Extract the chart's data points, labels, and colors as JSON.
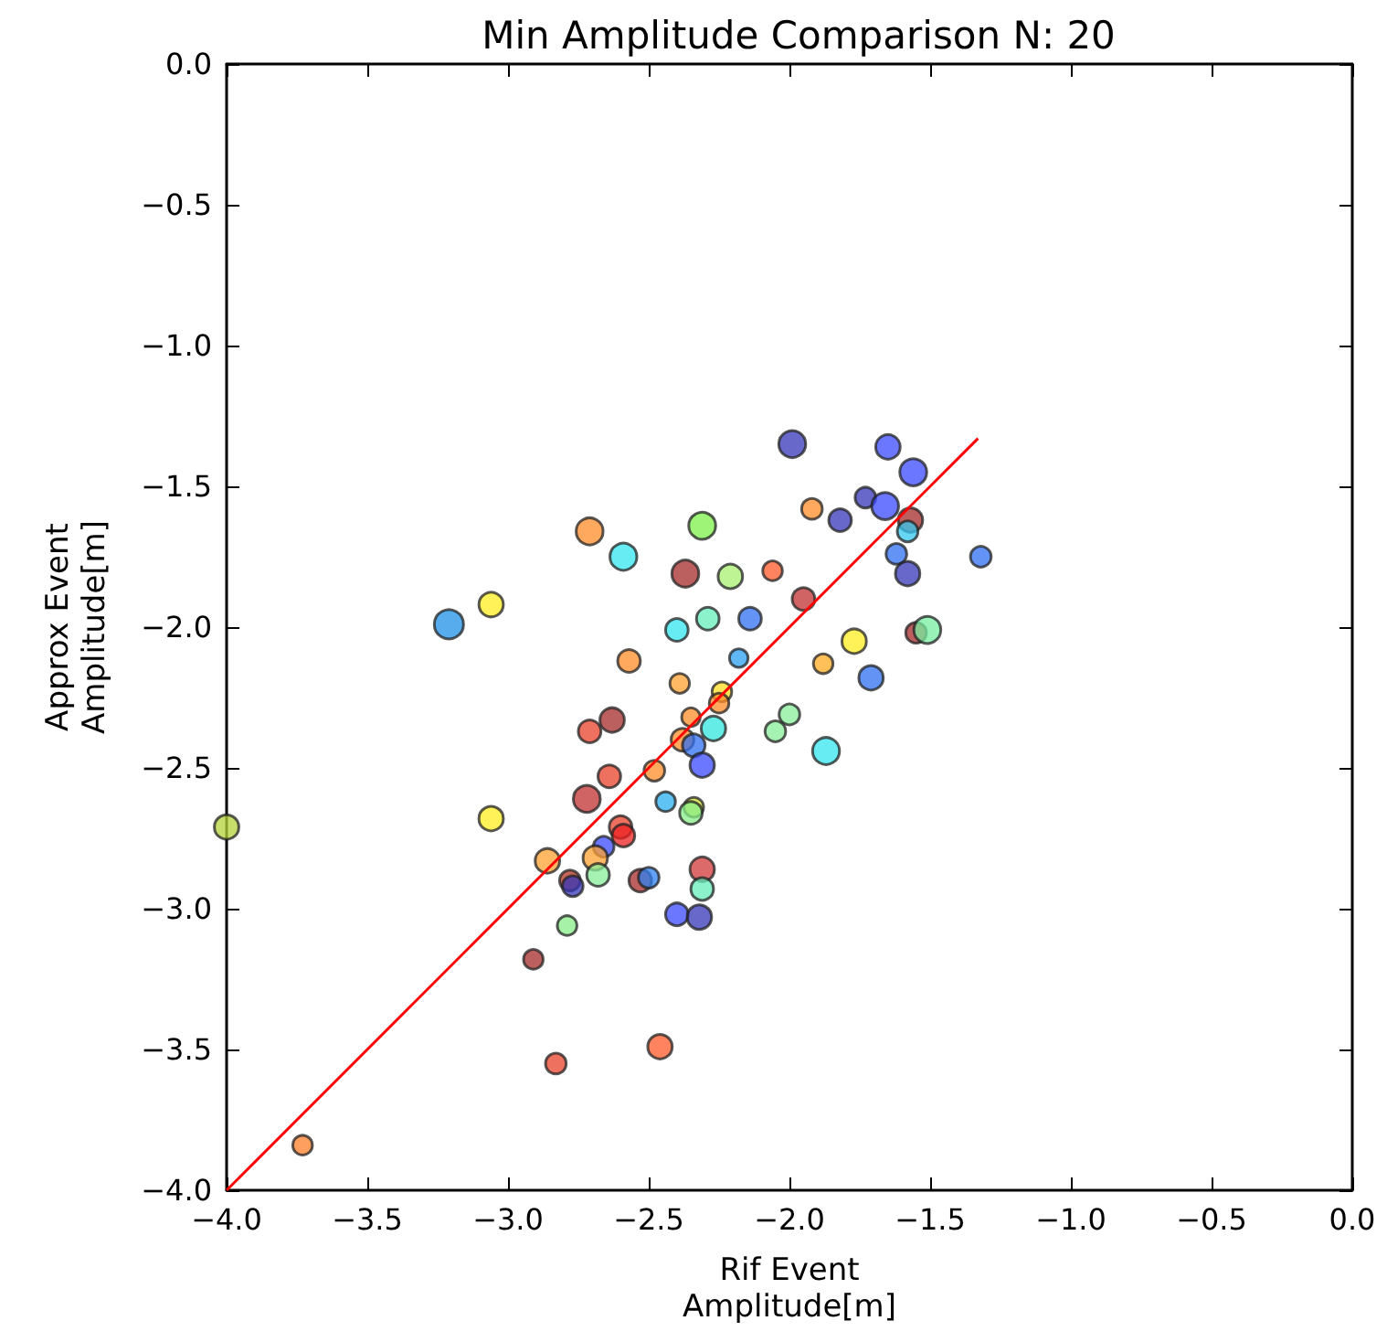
{
  "chart_data": {
    "type": "bubble",
    "title": "Min Amplitude Comparison N: 20",
    "xlabel": "Rif Event\nAmplitude[m]",
    "ylabel": "Approx Event\nAmplitude[m]",
    "xlim": [
      -4,
      0
    ],
    "ylim": [
      -4,
      0
    ],
    "xticks": [
      {
        "value": -4,
        "label": "−4.0"
      },
      {
        "value": -3.5,
        "label": "−3.5"
      },
      {
        "value": -3,
        "label": "−3.0"
      },
      {
        "value": -2.5,
        "label": "−2.5"
      },
      {
        "value": -2,
        "label": "−2.0"
      },
      {
        "value": -1.5,
        "label": "−1.5"
      },
      {
        "value": -1,
        "label": "−1.0"
      },
      {
        "value": -0.5,
        "label": "−0.5"
      },
      {
        "value": 0,
        "label": "0.0"
      }
    ],
    "yticks": [
      {
        "value": -4,
        "label": "−4.0"
      },
      {
        "value": -3.5,
        "label": "−3.5"
      },
      {
        "value": -3,
        "label": "−3.0"
      },
      {
        "value": -2.5,
        "label": "−2.5"
      },
      {
        "value": -2,
        "label": "−2.0"
      },
      {
        "value": -1.5,
        "label": "−1.5"
      },
      {
        "value": -1,
        "label": "−1.0"
      },
      {
        "value": -0.5,
        "label": "−0.5"
      },
      {
        "value": 0,
        "label": "0.0"
      }
    ],
    "series": [
      {
        "x": [
          -4.0,
          -3.73,
          -3.21,
          -3.06,
          -3.06,
          -2.71,
          -2.59,
          -2.31,
          -2.21,
          -2.37,
          -2.06,
          -1.99,
          -1.65,
          -1.56,
          -1.73,
          -1.66,
          -1.92,
          -1.82,
          -1.57,
          -1.58,
          -1.62,
          -1.32,
          -1.58,
          -1.95,
          -2.29,
          -2.14,
          -2.4,
          -1.55,
          -1.51,
          -2.57,
          -2.18,
          -1.88,
          -1.77,
          -1.71,
          -2.39,
          -2.24,
          -2.25,
          -2.63,
          -2.71,
          -2.35,
          -2.38,
          -2.34,
          -2.27,
          -2.0,
          -2.05,
          -1.87,
          -2.31,
          -2.48,
          -2.64,
          -2.72,
          -2.44,
          -2.34,
          -2.35,
          -2.6,
          -2.59,
          -2.66,
          -2.69,
          -2.68,
          -2.86,
          -2.31,
          -2.31,
          -2.78,
          -2.77,
          -2.53,
          -2.5,
          -2.4,
          -2.32,
          -2.79,
          -2.91,
          -2.83,
          -2.46
        ],
        "values": [
          -2.71,
          -3.84,
          -1.99,
          -1.92,
          -2.68,
          -1.66,
          -1.75,
          -1.64,
          -1.82,
          -1.81,
          -1.8,
          -1.35,
          -1.36,
          -1.45,
          -1.54,
          -1.57,
          -1.58,
          -1.62,
          -1.62,
          -1.66,
          -1.74,
          -1.75,
          -1.81,
          -1.9,
          -1.97,
          -1.97,
          -2.01,
          -2.02,
          -2.01,
          -2.12,
          -2.11,
          -2.13,
          -2.05,
          -2.18,
          -2.2,
          -2.23,
          -2.27,
          -2.33,
          -2.37,
          -2.32,
          -2.4,
          -2.42,
          -2.36,
          -2.31,
          -2.37,
          -2.44,
          -2.49,
          -2.51,
          -2.53,
          -2.61,
          -2.62,
          -2.64,
          -2.66,
          -2.71,
          -2.74,
          -2.78,
          -2.82,
          -2.88,
          -2.83,
          -2.86,
          -2.93,
          -2.9,
          -2.92,
          -2.9,
          -2.89,
          -3.02,
          -3.03,
          -3.06,
          -3.18,
          -3.55,
          -3.49
        ],
        "sizes": [
          0.7,
          0.45,
          1,
          0.7,
          0.7,
          0.85,
          0.85,
          0.85,
          0.7,
          0.85,
          0.45,
          0.85,
          0.7,
          0.85,
          0.5,
          0.85,
          0.5,
          0.6,
          0.7,
          0.5,
          0.5,
          0.5,
          0.7,
          0.6,
          0.6,
          0.6,
          0.6,
          0.5,
          0.85,
          0.6,
          0.4,
          0.45,
          0.7,
          0.7,
          0.45,
          0.45,
          0.45,
          0.7,
          0.6,
          0.4,
          0.6,
          0.6,
          0.7,
          0.5,
          0.5,
          0.85,
          0.7,
          0.5,
          0.6,
          0.85,
          0.45,
          0.45,
          0.6,
          0.6,
          0.6,
          0.5,
          0.7,
          0.6,
          0.7,
          0.7,
          0.6,
          0.5,
          0.5,
          0.6,
          0.5,
          0.6,
          0.7,
          0.45,
          0.45,
          0.5,
          0.7
        ],
        "colors": [
          "#b5d33a",
          "#ff7f2a",
          "#1e90e6",
          "#ffee22",
          "#ffee22",
          "#ff8c2a",
          "#33e5ee",
          "#7cf04a",
          "#a8f070",
          "#a52a2a",
          "#ff5a2a",
          "#3535b8",
          "#3a4aff",
          "#3a4aff",
          "#3535b8",
          "#3a4aff",
          "#ff8c2a",
          "#3535b8",
          "#a52a2a",
          "#33c8f0",
          "#2f6ff0",
          "#2f6ff0",
          "#3535b8",
          "#c03030",
          "#66eebb",
          "#2f6ff0",
          "#33e5ee",
          "#a52a2a",
          "#77eea0",
          "#ff8c2a",
          "#2aa0f0",
          "#ffaa22",
          "#ffee22",
          "#2f6ff0",
          "#ffa030",
          "#ffdd22",
          "#ff8c2a",
          "#a52a2a",
          "#e8402a",
          "#ff8c2a",
          "#ff8c2a",
          "#2f6ff0",
          "#33e5dd",
          "#88ee99",
          "#88ee99",
          "#33e5ee",
          "#3a4aff",
          "#ff8c2a",
          "#e8402a",
          "#c03030",
          "#2ab0f0",
          "#ccdd33",
          "#88ee88",
          "#e8402a",
          "#ee2020",
          "#3a4aff",
          "#ffa030",
          "#88ee99",
          "#ffa030",
          "#d03838",
          "#66eebb",
          "#b03020",
          "#3535b8",
          "#a52a2a",
          "#2f80f0",
          "#3a4aff",
          "#3535b8",
          "#88ee88",
          "#a52a2a",
          "#e8402a",
          "#ff5a2a"
        ]
      },
      {
        "type": "line",
        "x": [
          -4,
          -1.33
        ],
        "values": [
          -4,
          -1.33
        ],
        "color": "#ff0000"
      }
    ]
  }
}
